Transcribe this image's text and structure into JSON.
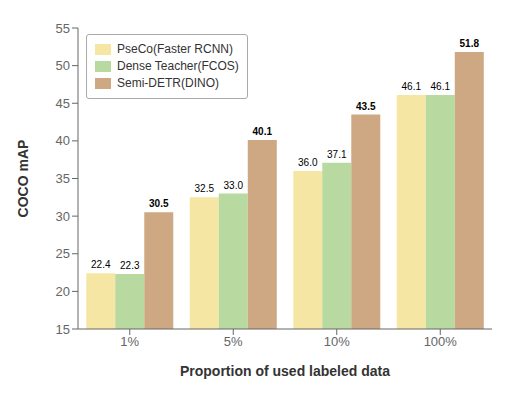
{
  "chart_data": {
    "type": "bar",
    "categories": [
      "1%",
      "5%",
      "10%",
      "100%"
    ],
    "series": [
      {
        "name": "PseCo(Faster RCNN)",
        "color": "#F5E6A3",
        "values": [
          22.4,
          32.5,
          36.0,
          46.1
        ],
        "value_labels": [
          "22.4",
          "32.5",
          "36.0",
          "46.1"
        ]
      },
      {
        "name": "Dense Teacher(FCOS)",
        "color": "#B8D9A0",
        "values": [
          22.3,
          33.0,
          37.1,
          46.1
        ],
        "value_labels": [
          "22.3",
          "33.0",
          "37.1",
          "46.1"
        ]
      },
      {
        "name": "Semi-DETR(DINO)",
        "color": "#CDA882",
        "values": [
          30.5,
          40.1,
          43.5,
          51.8
        ]
      }
    ],
    "xlabel": "Proportion of used labeled data",
    "ylabel": "COCO mAP",
    "ylim": [
      15,
      55
    ],
    "yticks": [
      15,
      20,
      25,
      30,
      35,
      40,
      45,
      50,
      55
    ],
    "grid": false,
    "legend": "upper left",
    "data_labels": true
  }
}
